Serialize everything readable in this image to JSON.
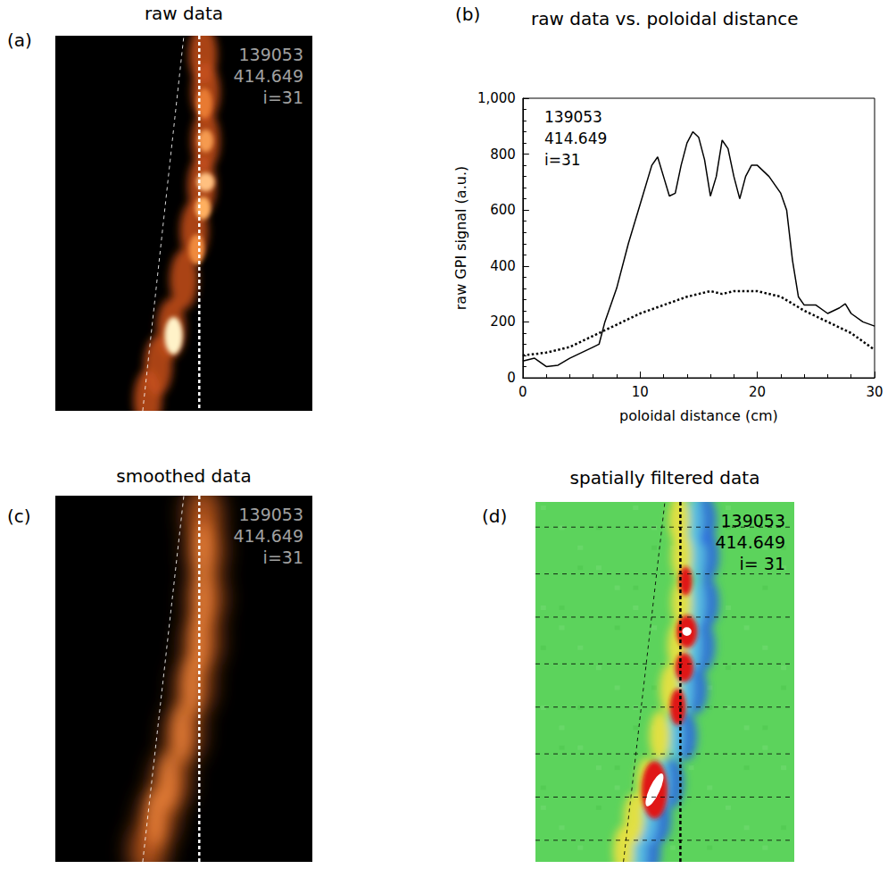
{
  "panels": [
    {
      "label": "(a)",
      "title": "raw data",
      "type": "image",
      "annotations": [
        "139053",
        "414.649",
        "i=31"
      ]
    },
    {
      "label": "(c)",
      "title": "smoothed data",
      "type": "image",
      "annotations": [
        "139053",
        "414.649",
        "i=31"
      ]
    },
    {
      "label": "(d)",
      "title": "spatially filtered data",
      "type": "image",
      "annotations": [
        "139053",
        "414.649",
        "i= 31"
      ]
    }
  ],
  "chart_data": {
    "type": "line",
    "label": "(b)",
    "title": "raw data vs. poloidal distance",
    "xlabel": "poloidal distance (cm)",
    "ylabel": "raw GPI signal (a.u.)",
    "annotations": [
      "139053",
      "414.649",
      "i=31"
    ],
    "xlim": [
      0,
      30
    ],
    "xticks": [
      0,
      10,
      20,
      30
    ],
    "ylim": [
      0,
      1000
    ],
    "yticks": [
      0,
      200,
      400,
      600,
      800,
      1000
    ],
    "grid": false,
    "series": [
      {
        "color": "#000000",
        "line_style": "solid",
        "x": [
          0,
          1,
          2,
          3,
          4,
          5,
          6,
          6.5,
          7,
          8,
          9,
          10,
          11,
          11.5,
          12,
          12.5,
          13,
          13.5,
          14,
          14.5,
          15,
          15.5,
          16,
          16.5,
          17,
          17.5,
          18,
          18.5,
          19,
          19.5,
          20,
          21,
          22,
          22.5,
          23,
          23.5,
          24,
          25,
          26,
          27,
          27.5,
          28,
          29,
          30
        ],
        "values": [
          60,
          70,
          40,
          45,
          70,
          90,
          110,
          120,
          200,
          320,
          480,
          620,
          760,
          790,
          720,
          650,
          660,
          760,
          840,
          880,
          860,
          780,
          650,
          720,
          850,
          820,
          720,
          640,
          720,
          760,
          760,
          720,
          660,
          600,
          420,
          290,
          260,
          260,
          230,
          250,
          265,
          230,
          200,
          185
        ]
      },
      {
        "color": "#000000",
        "line_style": "dotted",
        "x": [
          0,
          2,
          4,
          6,
          8,
          10,
          12,
          14,
          16,
          17,
          18,
          20,
          22,
          24,
          26,
          28,
          30
        ],
        "values": [
          80,
          90,
          110,
          150,
          190,
          230,
          260,
          290,
          310,
          300,
          310,
          310,
          290,
          240,
          200,
          160,
          100
        ]
      }
    ]
  }
}
